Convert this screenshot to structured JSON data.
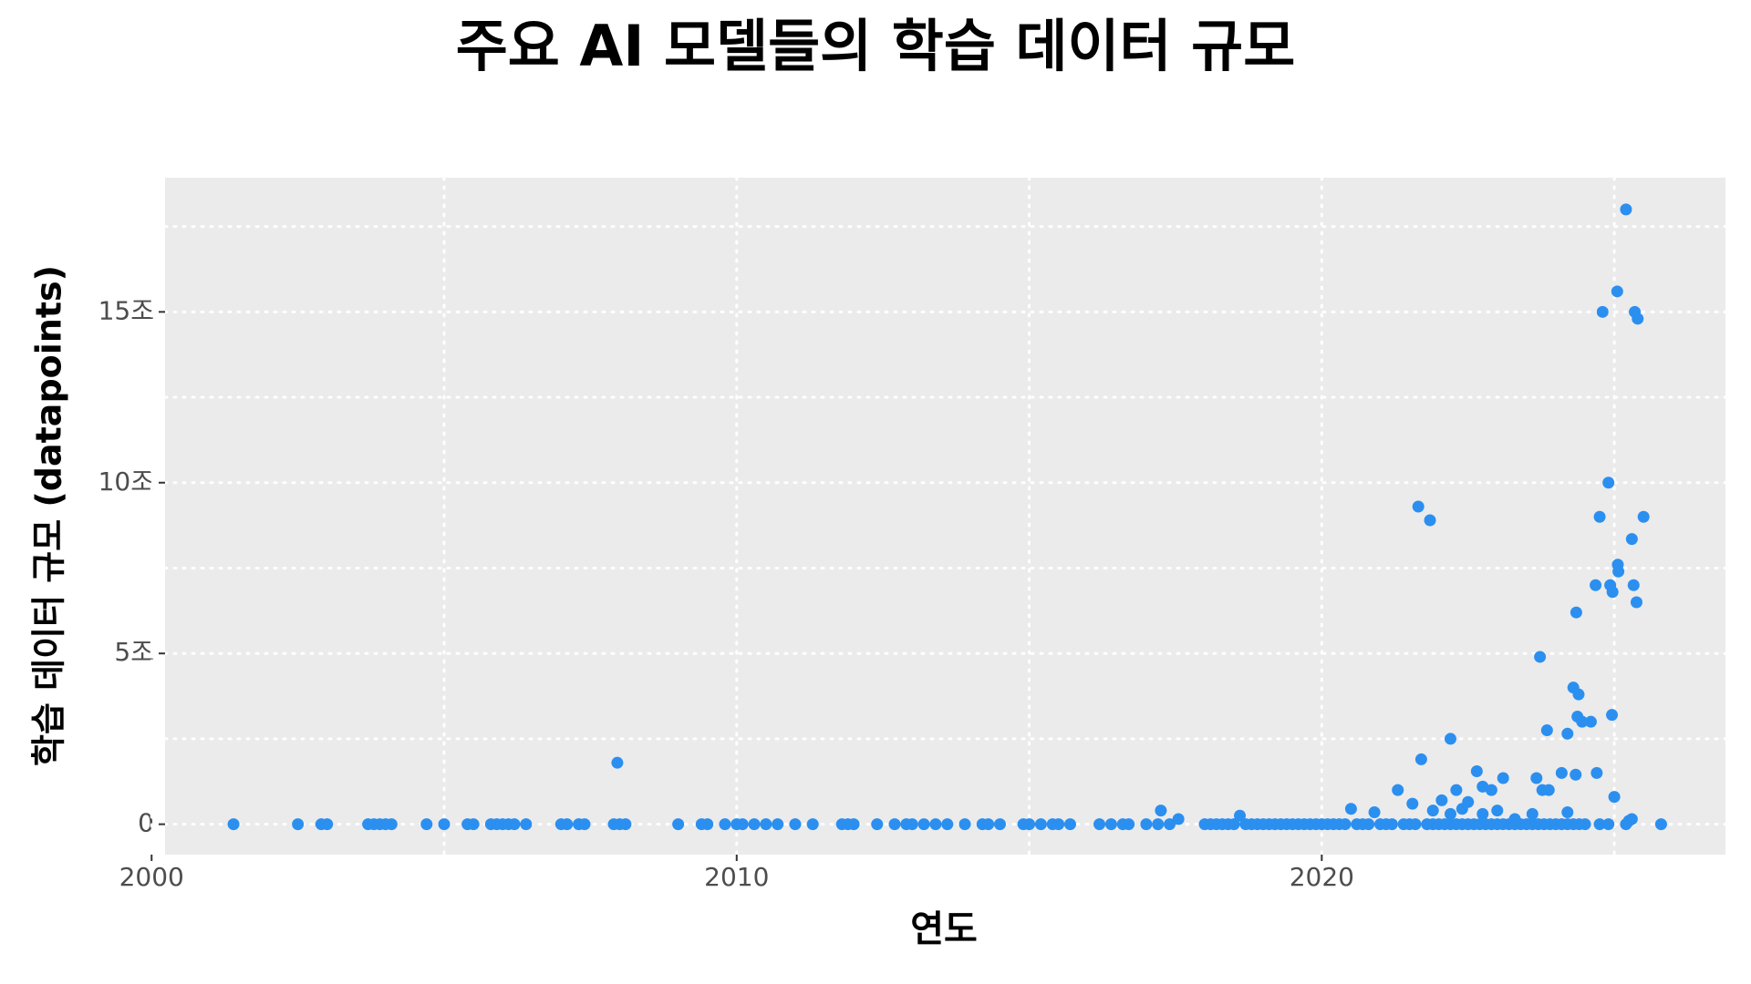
{
  "chart_data": {
    "type": "scatter",
    "title": "주요 AI 모델들의 학습 데이터 규모",
    "xlabel": "연도",
    "ylabel": "학습 데이터 규모 (datapoints)",
    "color": "#2b8ff0",
    "grid": true,
    "xlim": [
      2000.23,
      2026.9
    ],
    "ylim": [
      -0.89,
      18.93
    ],
    "xticks": [
      2000,
      2010,
      2020
    ],
    "yticks": [
      0,
      {
        "value": 5,
        "label": "5조"
      },
      {
        "value": 10,
        "label": "10조"
      },
      {
        "value": 15,
        "label": "15조"
      }
    ],
    "x_minor_grid": [
      2005,
      2015,
      2025
    ],
    "y_minor_grid": [
      2.5,
      7.5,
      12.5,
      17.5
    ],
    "x": [
      2001.4,
      2002.5,
      2002.9,
      2003.0,
      2003.7,
      2003.8,
      2003.9,
      2004.0,
      2004.1,
      2004.7,
      2005.0,
      2005.4,
      2005.5,
      2005.8,
      2005.9,
      2006.0,
      2006.1,
      2006.2,
      2006.4,
      2007.0,
      2007.1,
      2007.3,
      2007.4,
      2007.9,
      2008.0,
      2008.1,
      2009.0,
      2009.4,
      2009.5,
      2009.8,
      2010.0,
      2010.1,
      2010.3,
      2010.5,
      2010.7,
      2011.0,
      2011.3,
      2011.8,
      2011.9,
      2012.0,
      2012.4,
      2012.7,
      2012.9,
      2013.0,
      2013.2,
      2013.4,
      2013.6,
      2013.9,
      2014.2,
      2014.3,
      2014.5,
      2014.9,
      2015.0,
      2015.2,
      2015.4,
      2015.5,
      2015.7,
      2016.2,
      2016.4,
      2016.6,
      2016.7,
      2017.0,
      2017.2,
      2017.4,
      2018.0,
      2018.1,
      2018.2,
      2018.3,
      2018.4,
      2018.5,
      2018.7,
      2018.8,
      2018.9,
      2019.0,
      2019.1,
      2019.2,
      2019.3,
      2019.4,
      2019.5,
      2019.6,
      2019.7,
      2019.8,
      2019.9,
      2020.0,
      2020.1,
      2020.2,
      2020.3,
      2020.4,
      2020.6,
      2020.7,
      2020.8,
      2021.0,
      2021.1,
      2021.2,
      2021.4,
      2021.5,
      2021.6,
      2021.8,
      2021.9,
      2022.0,
      2022.1,
      2022.2,
      2022.3,
      2022.4,
      2022.5,
      2022.6,
      2022.7,
      2022.8,
      2022.9,
      2023.0,
      2023.1,
      2023.2,
      2023.3,
      2023.4,
      2023.5,
      2023.6,
      2023.7,
      2023.8,
      2023.9,
      2024.0,
      2024.1,
      2024.2,
      2024.3,
      2024.4,
      2024.5,
      2024.75,
      2024.9,
      2025.2,
      2025.8,
      2018.6,
      2020.5,
      2020.9,
      2017.25,
      2017.55,
      2022.05,
      2022.5,
      2022.75,
      2023.0,
      2023.3,
      2023.6,
      2024.2,
      2022.2,
      2022.4,
      2021.9,
      2025.25,
      2025.3,
      2007.96,
      2021.3,
      2021.55,
      2021.65,
      2021.7,
      2021.85,
      2022.2,
      2022.3,
      2022.65,
      2022.75,
      2022.9,
      2023.1,
      2023.67,
      2023.73,
      2023.77,
      2023.85,
      2023.88,
      2024.1,
      2024.2,
      2024.3,
      2024.35,
      2024.37,
      2024.39,
      2024.34,
      2024.45,
      2024.6,
      2024.7,
      2024.68,
      2024.75,
      2024.8,
      2024.9,
      2024.93,
      2024.96,
      2024.97,
      2025.0,
      2025.05,
      2025.06,
      2025.07,
      2025.2,
      2025.3,
      2025.33,
      2025.35,
      2025.38,
      2025.4,
      2025.5
    ],
    "values": [
      0,
      0,
      0,
      0,
      0,
      0,
      0,
      0,
      0,
      0,
      0,
      0,
      0,
      0,
      0,
      0,
      0,
      0,
      0,
      0,
      0,
      0,
      0,
      0,
      0,
      0,
      0,
      0,
      0,
      0,
      0,
      0,
      0,
      0,
      0,
      0,
      0,
      0,
      0,
      0,
      0,
      0,
      0,
      0,
      0,
      0,
      0,
      0,
      0,
      0,
      0,
      0,
      0,
      0,
      0,
      0,
      0,
      0,
      0,
      0,
      0,
      0,
      0,
      0,
      0,
      0,
      0,
      0,
      0,
      0,
      0,
      0,
      0,
      0,
      0,
      0,
      0,
      0,
      0,
      0,
      0,
      0,
      0,
      0,
      0,
      0,
      0,
      0,
      0,
      0,
      0,
      0,
      0,
      0,
      0,
      0,
      0,
      0,
      0,
      0,
      0,
      0,
      0,
      0,
      0,
      0,
      0,
      0,
      0,
      0,
      0,
      0,
      0,
      0,
      0,
      0,
      0,
      0,
      0,
      0,
      0,
      0,
      0,
      0,
      0,
      0,
      0,
      0,
      0,
      0.25,
      0.45,
      0.35,
      0.4,
      0.15,
      0.7,
      0.65,
      0.3,
      0.4,
      0.15,
      0.3,
      0.35,
      0.3,
      0.45,
      0.4,
      0.1,
      0.15,
      1.8,
      1.0,
      0.6,
      9.3,
      1.9,
      8.9,
      2.5,
      1.0,
      1.55,
      1.1,
      1.0,
      1.35,
      1.35,
      4.9,
      1.0,
      2.75,
      1.0,
      1.5,
      2.65,
      4.0,
      6.2,
      3.15,
      3.8,
      1.45,
      3.0,
      3.0,
      1.5,
      7.0,
      9.0,
      15.0,
      10.0,
      7.0,
      3.2,
      6.8,
      0.8,
      15.6,
      7.6,
      7.4,
      18.0,
      8.35,
      7.0,
      15.0,
      6.5,
      14.8,
      9.0
    ]
  }
}
